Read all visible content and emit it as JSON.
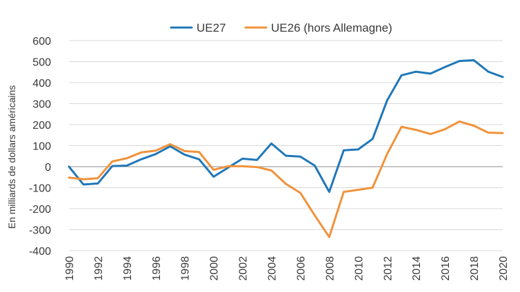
{
  "chart_data": {
    "type": "line",
    "title": "",
    "xlabel": "",
    "ylabel": "En milliards de dollars américains",
    "x": [
      1990,
      1991,
      1992,
      1993,
      1994,
      1995,
      1996,
      1997,
      1998,
      1999,
      2000,
      2001,
      2002,
      2003,
      2004,
      2005,
      2006,
      2007,
      2008,
      2009,
      2010,
      2011,
      2012,
      2013,
      2014,
      2015,
      2016,
      2017,
      2018,
      2019,
      2020
    ],
    "x_tick_labels": [
      "1990",
      "1992",
      "1994",
      "1996",
      "1998",
      "2000",
      "2002",
      "2004",
      "2006",
      "2008",
      "2010",
      "2012",
      "2014",
      "2016",
      "2018",
      "2020"
    ],
    "y_tick_labels": [
      "600",
      "500",
      "400",
      "300",
      "200",
      "100",
      "0",
      "-100",
      "-200",
      "-300",
      "-400"
    ],
    "ylim": [
      -400,
      600
    ],
    "grid": true,
    "legend_position": "top",
    "series": [
      {
        "name": "UE27",
        "color": "#1f77b8",
        "values": [
          0,
          -85,
          -80,
          3,
          5,
          35,
          60,
          97,
          57,
          35,
          -48,
          -5,
          38,
          32,
          110,
          52,
          48,
          5,
          -120,
          78,
          82,
          132,
          315,
          435,
          452,
          443,
          474,
          503,
          507,
          452,
          427
        ]
      },
      {
        "name": "UE26 (hors Allemagne)",
        "color": "#f0923a",
        "values": [
          -52,
          -60,
          -55,
          25,
          40,
          68,
          76,
          107,
          74,
          70,
          -15,
          2,
          2,
          -2,
          -18,
          -82,
          -125,
          -232,
          -335,
          -120,
          -110,
          -100,
          60,
          190,
          175,
          155,
          178,
          215,
          195,
          162,
          160
        ]
      }
    ]
  }
}
